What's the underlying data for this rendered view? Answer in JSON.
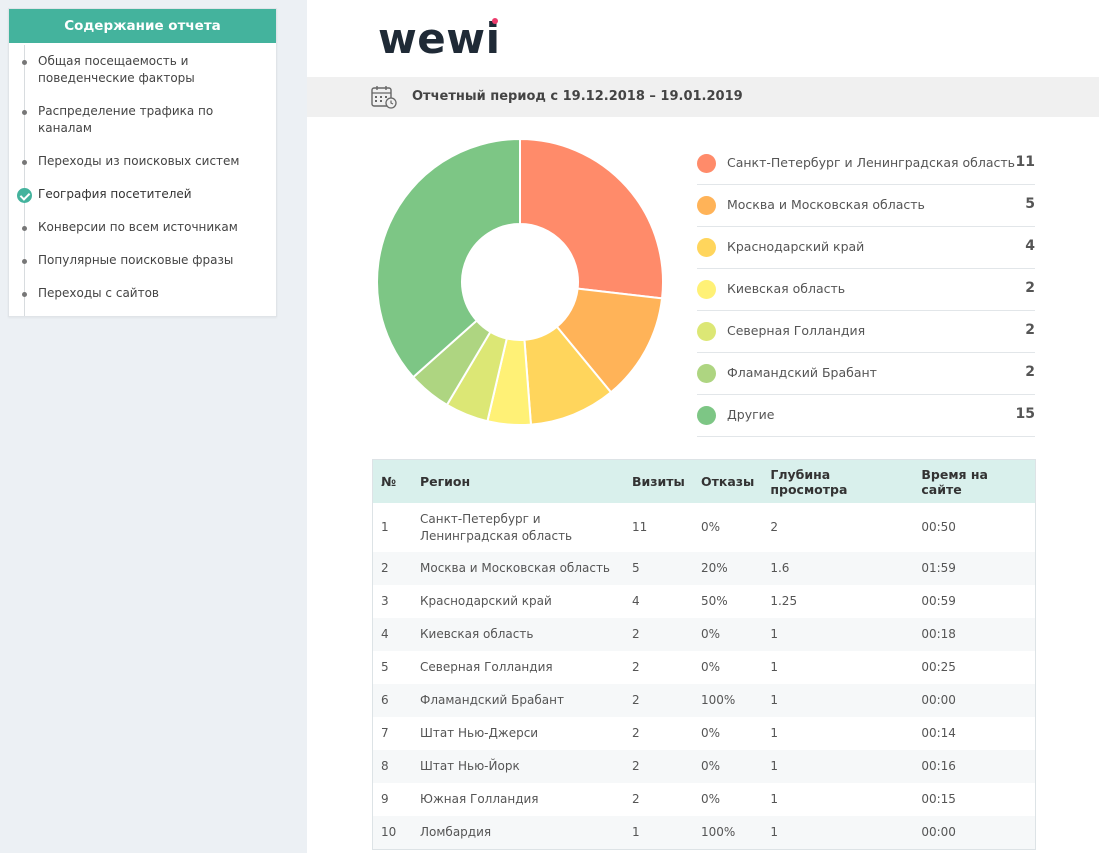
{
  "sidebar": {
    "title": "Содержание отчета",
    "items": [
      {
        "label": "Общая посещаемость и поведенческие факторы",
        "active": false
      },
      {
        "label": "Распределение трафика по каналам",
        "active": false
      },
      {
        "label": "Переходы из поисковых систем",
        "active": false
      },
      {
        "label": "География посетителей",
        "active": true
      },
      {
        "label": "Конверсии по всем источникам",
        "active": false
      },
      {
        "label": "Популярные поисковые фразы",
        "active": false
      },
      {
        "label": "Переходы с сайтов",
        "active": false
      }
    ]
  },
  "logo": {
    "text": "wewi",
    "dot_color": "#ec3b6c"
  },
  "period": {
    "text": "Отчетный период с 19.12.2018 – 19.01.2019",
    "icon": "calendar-clock-icon"
  },
  "chart_data": {
    "type": "pie",
    "style": "donut",
    "labels": [
      "Санкт-Петербург и Ленинградская область",
      "Москва и Московская область",
      "Краснодарский край",
      "Киевская область",
      "Северная Голландия",
      "Фламандский Брабант",
      "Другие"
    ],
    "values": [
      11,
      5,
      4,
      2,
      2,
      2,
      15
    ],
    "colors": [
      "#ff8b6a",
      "#ffb358",
      "#ffd55c",
      "#fff176",
      "#dce775",
      "#aed581",
      "#7dc685"
    ],
    "legend": "right"
  },
  "table": {
    "headers": [
      "№",
      "Регион",
      "Визиты",
      "Отказы",
      "Глубина просмотра",
      "Время на сайте"
    ],
    "rows": [
      [
        "1",
        "Санкт-Петербург и Ленинградская область",
        "11",
        "0%",
        "2",
        "00:50"
      ],
      [
        "2",
        "Москва и Московская область",
        "5",
        "20%",
        "1.6",
        "01:59"
      ],
      [
        "3",
        "Краснодарский край",
        "4",
        "50%",
        "1.25",
        "00:59"
      ],
      [
        "4",
        "Киевская область",
        "2",
        "0%",
        "1",
        "00:18"
      ],
      [
        "5",
        "Северная Голландия",
        "2",
        "0%",
        "1",
        "00:25"
      ],
      [
        "6",
        "Фламандский Брабант",
        "2",
        "100%",
        "1",
        "00:00"
      ],
      [
        "7",
        "Штат Нью-Джерси",
        "2",
        "0%",
        "1",
        "00:14"
      ],
      [
        "8",
        "Штат Нью-Йорк",
        "2",
        "0%",
        "1",
        "00:16"
      ],
      [
        "9",
        "Южная Голландия",
        "2",
        "0%",
        "1",
        "00:15"
      ],
      [
        "10",
        "Ломбардия",
        "1",
        "100%",
        "1",
        "00:00"
      ]
    ]
  }
}
